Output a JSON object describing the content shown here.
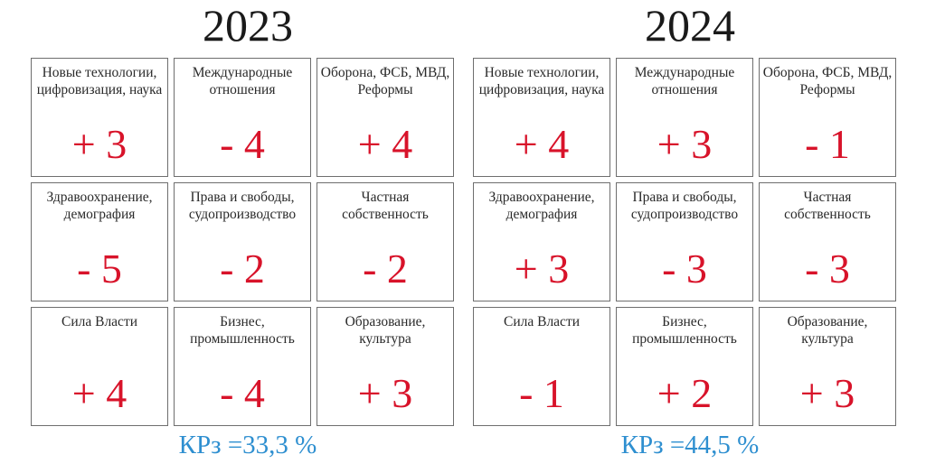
{
  "panels": [
    {
      "year": "2023",
      "cells": [
        {
          "label": "Новые технологии, цифровизация, наука",
          "value": "+ 3"
        },
        {
          "label": "Международные отношения",
          "value": "- 4"
        },
        {
          "label": "Оборона, ФСБ, МВД, Реформы",
          "value": "+ 4"
        },
        {
          "label": "Здравоохранение, демография",
          "value": "- 5"
        },
        {
          "label": "Права и свободы, судопроизводство",
          "value": "- 2"
        },
        {
          "label": "Частная собственность",
          "value": "- 2"
        },
        {
          "label": "Сила Власти",
          "value": "+ 4"
        },
        {
          "label": "Бизнес, промышленность",
          "value": "- 4"
        },
        {
          "label": "Образование, культура",
          "value": "+ 3"
        }
      ],
      "kr": "КРз =33,3 %"
    },
    {
      "year": "2024",
      "cells": [
        {
          "label": "Новые технологии, цифровизация, наука",
          "value": "+ 4"
        },
        {
          "label": "Международные отношения",
          "value": "+ 3"
        },
        {
          "label": "Оборона, ФСБ, МВД, Реформы",
          "value": "- 1"
        },
        {
          "label": "Здравоохранение, демография",
          "value": "+ 3"
        },
        {
          "label": "Права и свободы, судопроизводство",
          "value": "- 3"
        },
        {
          "label": "Частная собственность",
          "value": "- 3"
        },
        {
          "label": "Сила Власти",
          "value": "- 1"
        },
        {
          "label": "Бизнес, промышленность",
          "value": "+ 2"
        },
        {
          "label": "Образование, культура",
          "value": "+ 3"
        }
      ],
      "kr": "КРз =44,5 %"
    }
  ],
  "colors": {
    "value": "#d8132a",
    "kr": "#2e8fd0",
    "border": "#6e6e6e",
    "label": "#2a2a2a"
  }
}
